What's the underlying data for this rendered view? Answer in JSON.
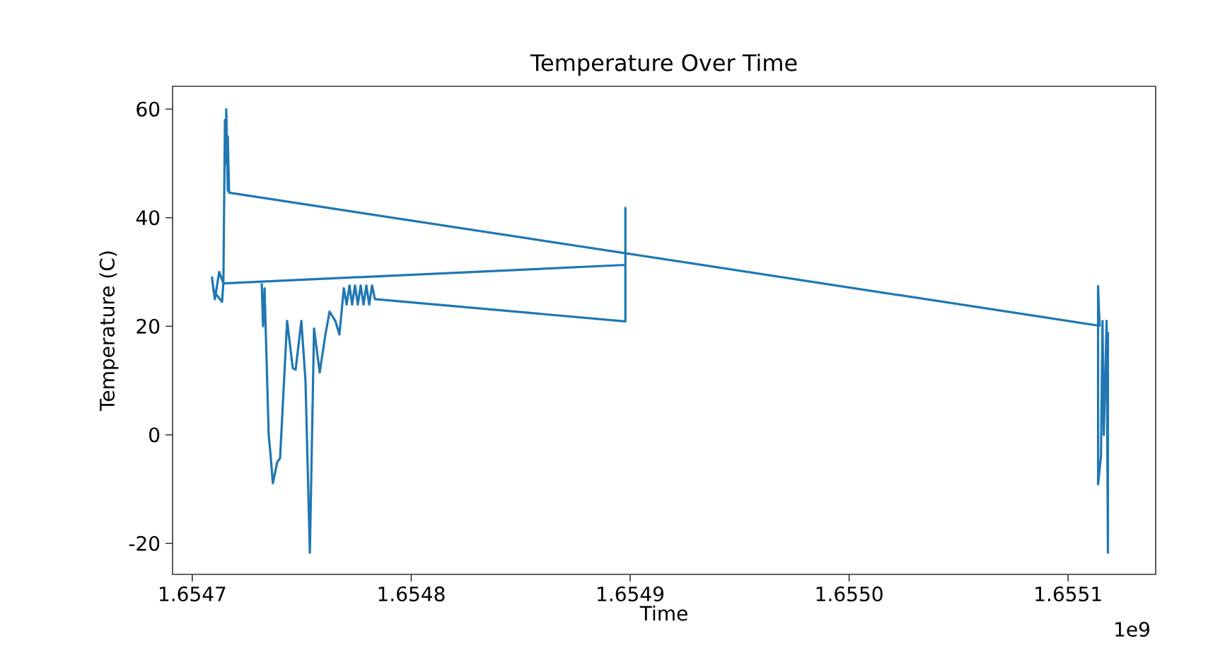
{
  "chart_data": {
    "type": "line",
    "title": "Temperature Over Time",
    "xlabel": "Time",
    "ylabel": "Temperature (C)",
    "annotations": [
      "1e9"
    ],
    "x": [
      1.6547317,
      1.6547323,
      1.654733,
      1.6547349,
      1.6547356,
      1.6547368,
      1.6547388,
      1.6547401,
      1.6547433,
      1.6547459,
      1.6547472,
      1.6547498,
      1.6547517,
      1.6547537,
      1.6547556,
      1.6547582,
      1.6547608,
      1.6547627,
      1.6547653,
      1.6547672,
      1.6547692,
      1.6547705,
      1.6547718,
      1.654773,
      1.6547743,
      1.6547756,
      1.6547769,
      1.6547782,
      1.6547795,
      1.6547808,
      1.6547821,
      1.6547834,
      1.6548978,
      1.6548978,
      1.6548978,
      1.6548978,
      1.6547142,
      1.6547123,
      1.6547103,
      1.654709,
      1.6547097,
      1.6547136,
      1.6547142,
      1.6547149,
      1.6547155,
      1.6547155,
      1.6547162,
      1.6547162,
      1.6547168,
      1.6551144,
      1.6551137,
      1.6551137,
      1.655115,
      1.6551157,
      1.6551163,
      1.6551176,
      1.6551182,
      1.6551182
    ],
    "series": [
      {
        "color": "#1f77b4",
        "values": [
          27.9,
          20,
          27,
          0,
          -3,
          -8.9,
          -5,
          -4.3,
          21,
          12.3,
          12,
          21,
          10,
          -21.7,
          19.6,
          11.5,
          18.5,
          22.7,
          21,
          18.5,
          27,
          24,
          27.5,
          24,
          27.5,
          24,
          27.5,
          24,
          27.5,
          24,
          27.5,
          25,
          20.9,
          41.8,
          25,
          31.3,
          27.9,
          30,
          25,
          29,
          26.5,
          24.5,
          28,
          58,
          50,
          60,
          45,
          55,
          44.6,
          20.1,
          27.4,
          -9.1,
          -4,
          21,
          0,
          21,
          -21.7,
          19
        ]
      }
    ],
    "xlim": [
      1.654691,
      1.65514
    ],
    "ylim": [
      -25.7,
      64.2
    ],
    "xticks": [
      1.6547,
      1.6548,
      1.6549,
      {
        "value": 1.655,
        "label": "1.6550"
      },
      1.6551
    ],
    "yticks": [
      -20,
      0,
      20,
      40,
      60
    ],
    "grid": false,
    "marker": "none",
    "line_style": "solid"
  }
}
